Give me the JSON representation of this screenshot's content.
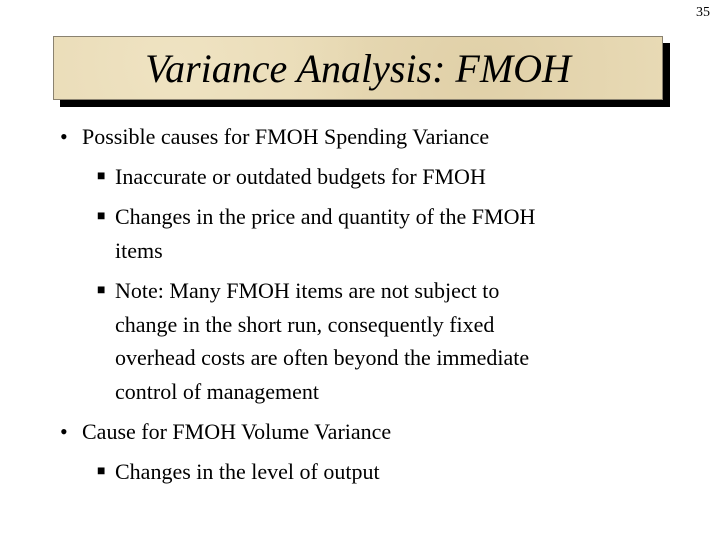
{
  "page_number": "35",
  "title": "Variance Analysis: FMOH",
  "bullets": [
    {
      "text": "Possible causes for FMOH Spending Variance",
      "sub": [
        {
          "lines": [
            "Inaccurate or outdated budgets for FMOH"
          ]
        },
        {
          "lines": [
            "Changes in the price and quantity of the FMOH",
            "items"
          ]
        },
        {
          "lines": [
            "Note: Many FMOH items are not subject to",
            "change in the short run, consequently fixed",
            "overhead costs are often beyond the immediate",
            "control of management"
          ]
        }
      ]
    },
    {
      "text": "Cause for FMOH Volume Variance",
      "sub": [
        {
          "lines": [
            "Changes in the level of output"
          ]
        }
      ]
    }
  ]
}
